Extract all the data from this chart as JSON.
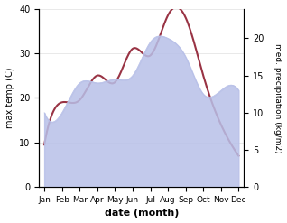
{
  "months": [
    "Jan",
    "Feb",
    "Mar",
    "Apr",
    "May",
    "Jun",
    "Jul",
    "Aug",
    "Sep",
    "Oct",
    "Nov",
    "Dec"
  ],
  "month_indices": [
    0,
    1,
    2,
    3,
    4,
    5,
    6,
    7,
    8,
    9,
    10,
    11
  ],
  "temperature": [
    9.5,
    19.0,
    19.5,
    25.0,
    23.5,
    31.0,
    29.5,
    38.5,
    38.0,
    25.0,
    14.0,
    7.0
  ],
  "precipitation": [
    10.0,
    10.0,
    14.0,
    14.0,
    14.5,
    15.0,
    19.5,
    20.0,
    17.5,
    12.5,
    13.0,
    13.0
  ],
  "temp_color": "#993344",
  "precip_fill_color": "#b8c0e8",
  "temp_ylim": [
    0,
    40
  ],
  "precip_ylim": [
    0,
    24
  ],
  "temp_yticks": [
    0,
    10,
    20,
    30,
    40
  ],
  "precip_yticks": [
    0,
    5,
    10,
    15,
    20
  ],
  "xlabel": "date (month)",
  "ylabel_left": "max temp (C)",
  "ylabel_right": "med. precipitation (kg/m2)",
  "figsize": [
    3.18,
    2.47
  ],
  "dpi": 100,
  "bg_color": "#ffffff"
}
